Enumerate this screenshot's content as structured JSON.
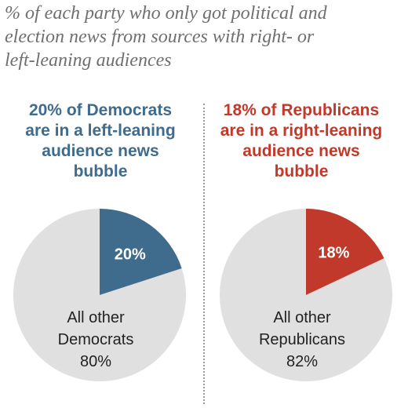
{
  "title_lines": [
    "% of each party who only got political and",
    "election news from sources with right- or",
    "left-leaning audiences"
  ],
  "colors": {
    "democrat": "#3f6b8c",
    "republican": "#c0392b",
    "other": "#e0e0e0"
  },
  "chart_data": [
    {
      "type": "pie",
      "heading_lines": [
        "20% of Democrats",
        "are in a left-leaning",
        "audience news",
        "bubble"
      ],
      "slices": [
        {
          "label": "20%",
          "value": 20
        },
        {
          "label_lines": [
            "All other",
            "Democrats",
            "80%"
          ],
          "value": 80
        }
      ]
    },
    {
      "type": "pie",
      "heading_lines": [
        "18% of Republicans",
        "are in a right-leaning",
        "audience news",
        "bubble"
      ],
      "slices": [
        {
          "label": "18%",
          "value": 18
        },
        {
          "label_lines": [
            "All other",
            "Republicans",
            "82%"
          ],
          "value": 82
        }
      ]
    }
  ]
}
